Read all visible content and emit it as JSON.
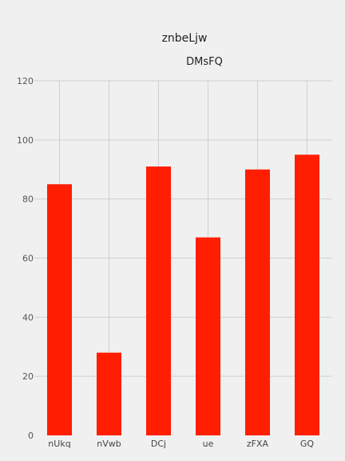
{
  "chart_data": {
    "type": "bar",
    "title": "znbeLjw",
    "subtitle": "DMsFQ",
    "categories": [
      "nUkq",
      "nVwb",
      "DCj",
      "ue",
      "zFXA",
      "GQ"
    ],
    "values": [
      85,
      28,
      91,
      67,
      90,
      95
    ],
    "ylim": [
      0,
      120
    ],
    "yticks": [
      0,
      20,
      40,
      60,
      80,
      100,
      120
    ],
    "grid": true,
    "colors": {
      "bar": "#ff1e00",
      "grid": "#cfcfcf",
      "background": "#f0f0f0"
    }
  }
}
